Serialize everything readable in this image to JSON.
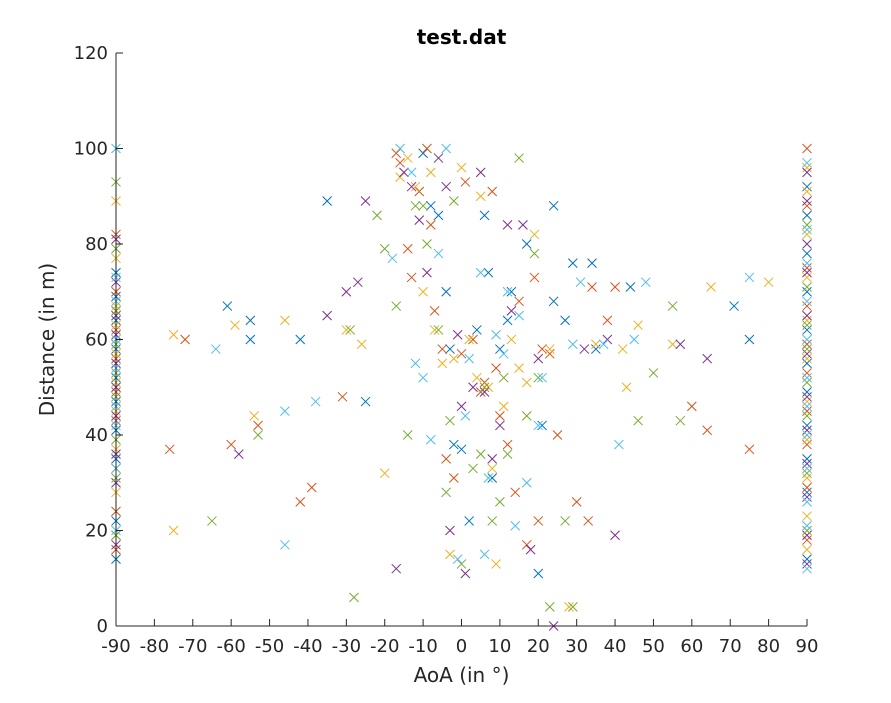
{
  "chart_data": {
    "type": "scatter",
    "title": "test.dat",
    "xlabel": "AoA (in °)",
    "ylabel": "Distance (in m)",
    "xlim": [
      -90,
      90
    ],
    "ylim": [
      0,
      120
    ],
    "xticks": [
      -90,
      -80,
      -70,
      -60,
      -50,
      -40,
      -30,
      -20,
      -10,
      0,
      10,
      20,
      30,
      40,
      50,
      60,
      70,
      80,
      90
    ],
    "yticks": [
      0,
      20,
      40,
      60,
      80,
      100,
      120
    ],
    "grid": false,
    "legend": "none",
    "marker": "x",
    "series": [
      {
        "color": "#0072BD",
        "points": [
          [
            -90,
            14
          ],
          [
            -90,
            22
          ],
          [
            -90,
            35
          ],
          [
            -90,
            41
          ],
          [
            -90,
            47
          ],
          [
            -90,
            52
          ],
          [
            -90,
            58
          ],
          [
            -90,
            64
          ],
          [
            -90,
            69
          ],
          [
            -90,
            74
          ],
          [
            -61,
            67
          ],
          [
            -55,
            64
          ],
          [
            -55,
            60
          ],
          [
            -42,
            60
          ],
          [
            -35,
            89
          ],
          [
            -25,
            47
          ],
          [
            -10,
            99
          ],
          [
            -8,
            88
          ],
          [
            -6,
            86
          ],
          [
            -4,
            70
          ],
          [
            -3,
            58
          ],
          [
            -2,
            38
          ],
          [
            0,
            37
          ],
          [
            2,
            22
          ],
          [
            4,
            62
          ],
          [
            6,
            86
          ],
          [
            7,
            74
          ],
          [
            8,
            31
          ],
          [
            10,
            58
          ],
          [
            12,
            64
          ],
          [
            13,
            70
          ],
          [
            17,
            80
          ],
          [
            20,
            11
          ],
          [
            21,
            42
          ],
          [
            24,
            88
          ],
          [
            24,
            68
          ],
          [
            27,
            64
          ],
          [
            29,
            76
          ],
          [
            34,
            76
          ],
          [
            35,
            58
          ],
          [
            44,
            71
          ],
          [
            71,
            67
          ],
          [
            75,
            60
          ],
          [
            90,
            14
          ],
          [
            90,
            28
          ],
          [
            90,
            35
          ],
          [
            90,
            42
          ],
          [
            90,
            49
          ],
          [
            90,
            55
          ],
          [
            90,
            62
          ],
          [
            90,
            70
          ],
          [
            90,
            78
          ],
          [
            90,
            86
          ],
          [
            90,
            92
          ]
        ]
      },
      {
        "color": "#D95319",
        "points": [
          [
            -90,
            16
          ],
          [
            -90,
            24
          ],
          [
            -90,
            33
          ],
          [
            -90,
            43
          ],
          [
            -90,
            49
          ],
          [
            -90,
            56
          ],
          [
            -90,
            62
          ],
          [
            -90,
            66
          ],
          [
            -90,
            70
          ],
          [
            -90,
            82
          ],
          [
            -76,
            37
          ],
          [
            -72,
            60
          ],
          [
            -60,
            38
          ],
          [
            -53,
            42
          ],
          [
            -42,
            26
          ],
          [
            -39,
            29
          ],
          [
            -31,
            48
          ],
          [
            -17,
            99
          ],
          [
            -16,
            97
          ],
          [
            -14,
            79
          ],
          [
            -13,
            73
          ],
          [
            -11,
            91
          ],
          [
            -9,
            100
          ],
          [
            -8,
            84
          ],
          [
            -7,
            66
          ],
          [
            -5,
            58
          ],
          [
            -4,
            35
          ],
          [
            -2,
            31
          ],
          [
            0,
            57
          ],
          [
            1,
            93
          ],
          [
            3,
            60
          ],
          [
            5,
            49
          ],
          [
            6,
            51
          ],
          [
            8,
            91
          ],
          [
            9,
            54
          ],
          [
            10,
            44
          ],
          [
            12,
            38
          ],
          [
            14,
            28
          ],
          [
            15,
            68
          ],
          [
            17,
            17
          ],
          [
            19,
            73
          ],
          [
            20,
            22
          ],
          [
            21,
            58
          ],
          [
            23,
            57
          ],
          [
            25,
            40
          ],
          [
            30,
            26
          ],
          [
            33,
            22
          ],
          [
            34,
            71
          ],
          [
            38,
            64
          ],
          [
            40,
            71
          ],
          [
            60,
            46
          ],
          [
            64,
            41
          ],
          [
            75,
            37
          ],
          [
            90,
            18
          ],
          [
            90,
            29
          ],
          [
            90,
            38
          ],
          [
            90,
            45
          ],
          [
            90,
            53
          ],
          [
            90,
            59
          ],
          [
            90,
            67
          ],
          [
            90,
            75
          ],
          [
            90,
            88
          ],
          [
            90,
            100
          ]
        ]
      },
      {
        "color": "#EDB120",
        "points": [
          [
            -90,
            19
          ],
          [
            -90,
            28
          ],
          [
            -90,
            37
          ],
          [
            -90,
            45
          ],
          [
            -90,
            51
          ],
          [
            -90,
            57
          ],
          [
            -90,
            63
          ],
          [
            -90,
            67
          ],
          [
            -90,
            77
          ],
          [
            -90,
            89
          ],
          [
            -75,
            61
          ],
          [
            -75,
            20
          ],
          [
            -59,
            63
          ],
          [
            -54,
            44
          ],
          [
            -46,
            64
          ],
          [
            -30,
            62
          ],
          [
            -26,
            59
          ],
          [
            -20,
            32
          ],
          [
            -16,
            94
          ],
          [
            -14,
            98
          ],
          [
            -12,
            92
          ],
          [
            -10,
            70
          ],
          [
            -8,
            95
          ],
          [
            -7,
            62
          ],
          [
            -5,
            55
          ],
          [
            -3,
            15
          ],
          [
            -2,
            56
          ],
          [
            0,
            96
          ],
          [
            2,
            60
          ],
          [
            4,
            52
          ],
          [
            5,
            90
          ],
          [
            7,
            50
          ],
          [
            8,
            33
          ],
          [
            9,
            13
          ],
          [
            11,
            46
          ],
          [
            13,
            60
          ],
          [
            15,
            54
          ],
          [
            17,
            51
          ],
          [
            19,
            82
          ],
          [
            23,
            58
          ],
          [
            28,
            4
          ],
          [
            35,
            59
          ],
          [
            42,
            58
          ],
          [
            43,
            50
          ],
          [
            46,
            63
          ],
          [
            55,
            59
          ],
          [
            65,
            71
          ],
          [
            80,
            72
          ],
          [
            90,
            16
          ],
          [
            90,
            23
          ],
          [
            90,
            31
          ],
          [
            90,
            39
          ],
          [
            90,
            47
          ],
          [
            90,
            56
          ],
          [
            90,
            64
          ],
          [
            90,
            73
          ],
          [
            90,
            82
          ],
          [
            90,
            91
          ],
          [
            90,
            96
          ]
        ]
      },
      {
        "color": "#7E2F8E",
        "points": [
          [
            -90,
            17
          ],
          [
            -90,
            30
          ],
          [
            -90,
            36
          ],
          [
            -90,
            44
          ],
          [
            -90,
            50
          ],
          [
            -90,
            55
          ],
          [
            -90,
            61
          ],
          [
            -90,
            65
          ],
          [
            -90,
            72
          ],
          [
            -90,
            81
          ],
          [
            -58,
            36
          ],
          [
            -35,
            65
          ],
          [
            -30,
            70
          ],
          [
            -27,
            72
          ],
          [
            -25,
            89
          ],
          [
            -17,
            12
          ],
          [
            -15,
            95
          ],
          [
            -13,
            92
          ],
          [
            -11,
            85
          ],
          [
            -9,
            74
          ],
          [
            -6,
            98
          ],
          [
            -4,
            92
          ],
          [
            -3,
            20
          ],
          [
            -1,
            61
          ],
          [
            0,
            46
          ],
          [
            1,
            11
          ],
          [
            3,
            50
          ],
          [
            5,
            95
          ],
          [
            6,
            49
          ],
          [
            8,
            35
          ],
          [
            10,
            42
          ],
          [
            12,
            84
          ],
          [
            13,
            66
          ],
          [
            16,
            84
          ],
          [
            18,
            16
          ],
          [
            20,
            56
          ],
          [
            24,
            0
          ],
          [
            32,
            58
          ],
          [
            38,
            60
          ],
          [
            40,
            19
          ],
          [
            57,
            59
          ],
          [
            64,
            56
          ],
          [
            90,
            13
          ],
          [
            90,
            19
          ],
          [
            90,
            27
          ],
          [
            90,
            34
          ],
          [
            90,
            41
          ],
          [
            90,
            48
          ],
          [
            90,
            57
          ],
          [
            90,
            65
          ],
          [
            90,
            74
          ],
          [
            90,
            80
          ],
          [
            90,
            89
          ],
          [
            90,
            95
          ]
        ]
      },
      {
        "color": "#77AC30",
        "points": [
          [
            -90,
            19
          ],
          [
            -90,
            31
          ],
          [
            -90,
            39
          ],
          [
            -90,
            48
          ],
          [
            -90,
            53
          ],
          [
            -90,
            59
          ],
          [
            -90,
            66
          ],
          [
            -90,
            79
          ],
          [
            -90,
            93
          ],
          [
            -65,
            22
          ],
          [
            -53,
            40
          ],
          [
            -29,
            62
          ],
          [
            -28,
            6
          ],
          [
            -22,
            86
          ],
          [
            -20,
            79
          ],
          [
            -17,
            67
          ],
          [
            -14,
            40
          ],
          [
            -12,
            88
          ],
          [
            -10,
            88
          ],
          [
            -9,
            80
          ],
          [
            -6,
            62
          ],
          [
            -4,
            28
          ],
          [
            -3,
            43
          ],
          [
            -2,
            89
          ],
          [
            0,
            13
          ],
          [
            3,
            33
          ],
          [
            5,
            36
          ],
          [
            6,
            50
          ],
          [
            8,
            22
          ],
          [
            10,
            26
          ],
          [
            11,
            52
          ],
          [
            12,
            36
          ],
          [
            15,
            98
          ],
          [
            17,
            44
          ],
          [
            19,
            78
          ],
          [
            20,
            52
          ],
          [
            23,
            4
          ],
          [
            27,
            22
          ],
          [
            29,
            4
          ],
          [
            46,
            43
          ],
          [
            50,
            53
          ],
          [
            55,
            67
          ],
          [
            57,
            43
          ],
          [
            90,
            20
          ],
          [
            90,
            32
          ],
          [
            90,
            44
          ],
          [
            90,
            51
          ],
          [
            90,
            58
          ],
          [
            90,
            63
          ],
          [
            90,
            71
          ],
          [
            90,
            84
          ]
        ]
      },
      {
        "color": "#4DBEEE",
        "points": [
          [
            -90,
            20
          ],
          [
            -90,
            33
          ],
          [
            -90,
            42
          ],
          [
            -90,
            46
          ],
          [
            -90,
            54
          ],
          [
            -90,
            60
          ],
          [
            -90,
            68
          ],
          [
            -90,
            73
          ],
          [
            -90,
            100
          ],
          [
            -64,
            58
          ],
          [
            -46,
            45
          ],
          [
            -46,
            17
          ],
          [
            -38,
            47
          ],
          [
            -18,
            77
          ],
          [
            -16,
            100
          ],
          [
            -13,
            95
          ],
          [
            -12,
            55
          ],
          [
            -10,
            52
          ],
          [
            -8,
            39
          ],
          [
            -6,
            78
          ],
          [
            -4,
            100
          ],
          [
            -1,
            14
          ],
          [
            1,
            44
          ],
          [
            2,
            56
          ],
          [
            5,
            74
          ],
          [
            6,
            15
          ],
          [
            7,
            31
          ],
          [
            9,
            61
          ],
          [
            11,
            57
          ],
          [
            12,
            70
          ],
          [
            14,
            21
          ],
          [
            15,
            65
          ],
          [
            17,
            30
          ],
          [
            20,
            42
          ],
          [
            21,
            52
          ],
          [
            29,
            59
          ],
          [
            31,
            72
          ],
          [
            37,
            59
          ],
          [
            41,
            38
          ],
          [
            45,
            60
          ],
          [
            48,
            72
          ],
          [
            75,
            73
          ],
          [
            90,
            12
          ],
          [
            90,
            21
          ],
          [
            90,
            26
          ],
          [
            90,
            33
          ],
          [
            90,
            40
          ],
          [
            90,
            46
          ],
          [
            90,
            52
          ],
          [
            90,
            60
          ],
          [
            90,
            68
          ],
          [
            90,
            76
          ],
          [
            90,
            83
          ],
          [
            90,
            97
          ]
        ]
      }
    ]
  }
}
